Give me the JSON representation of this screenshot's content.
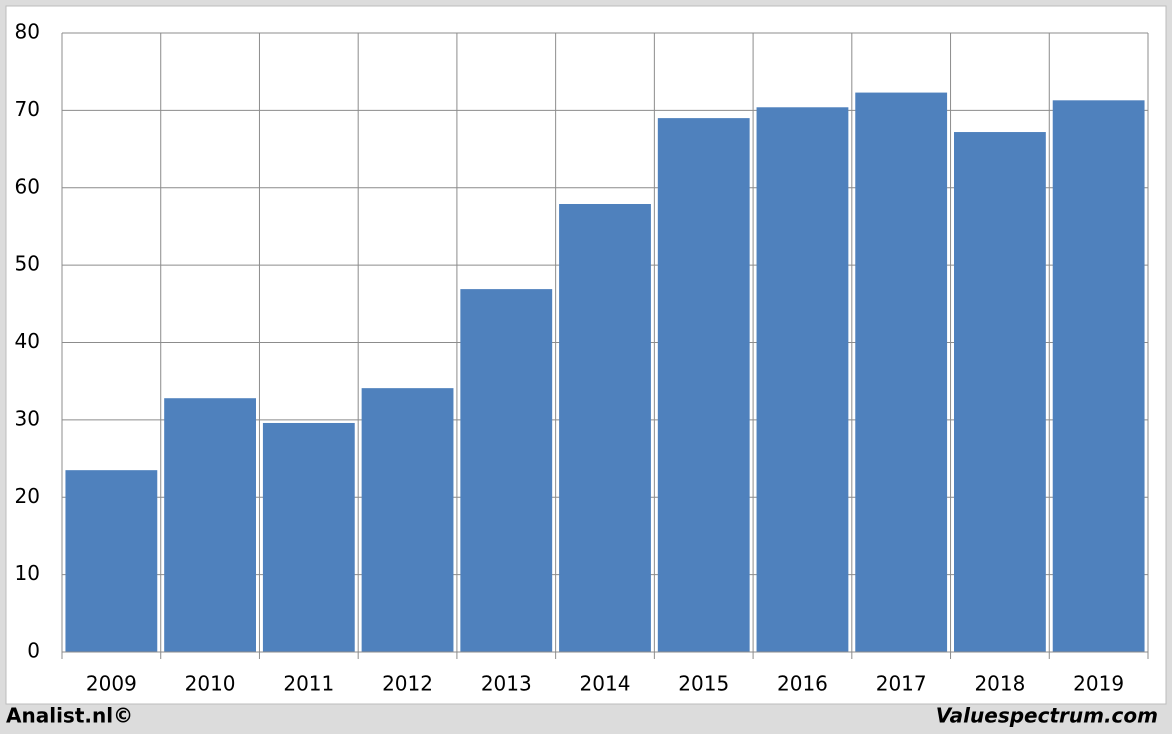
{
  "chart_data": {
    "type": "bar",
    "categories": [
      "2009",
      "2010",
      "2011",
      "2012",
      "2013",
      "2014",
      "2015",
      "2016",
      "2017",
      "2018",
      "2019"
    ],
    "values": [
      23.5,
      32.8,
      29.6,
      34.1,
      46.9,
      57.9,
      69.0,
      70.4,
      72.3,
      67.2,
      71.3
    ],
    "color": "#4f81bd",
    "ylim": [
      0,
      80
    ],
    "yticks": [
      0,
      10,
      20,
      30,
      40,
      50,
      60,
      70,
      80
    ],
    "grid": true
  },
  "footer": {
    "left": "Analist.nl©",
    "right": "Valuespectrum.com"
  }
}
